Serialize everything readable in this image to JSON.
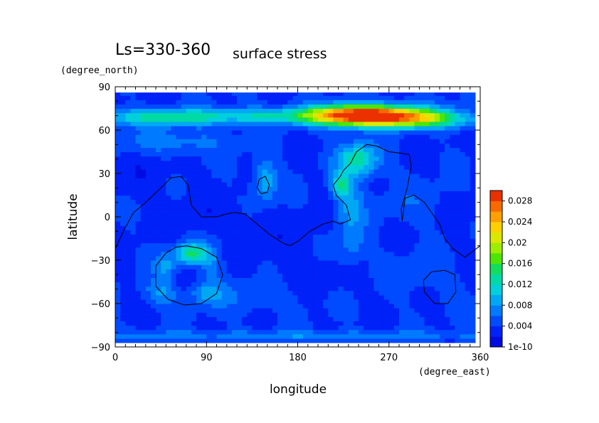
{
  "chart_data": {
    "type": "heatmap",
    "title_main": "Ls=330-360",
    "title_sub": "surface stress",
    "xlabel": "longitude",
    "ylabel": "latitude",
    "x_unit": "(degree_east)",
    "y_unit": "(degree_north)",
    "xlim": [
      0,
      360
    ],
    "ylim": [
      -90,
      90
    ],
    "x_ticks": [
      0,
      90,
      180,
      270,
      360
    ],
    "y_ticks": [
      90,
      60,
      30,
      0,
      -30,
      -60,
      -90
    ],
    "x_tick_labels": [
      "0",
      "90",
      "180",
      "270",
      "360"
    ],
    "y_tick_labels": [
      "90",
      "60",
      "30",
      "0",
      "−30",
      "−60",
      "−90"
    ],
    "data_lat_range": [
      -87,
      86
    ],
    "data_lon_range": [
      0,
      355
    ],
    "colorbar": {
      "labels": [
        "1e-10",
        "0.004",
        "0.008",
        "0.012",
        "0.016",
        "0.02",
        "0.024",
        "0.028"
      ],
      "values": [
        0,
        0.004,
        0.008,
        0.012,
        0.016,
        0.02,
        0.024,
        0.028
      ],
      "vmax": 0.03,
      "levels": 15
    },
    "background_value": 0.0038,
    "features": [
      {
        "lon": 265,
        "lat": 70,
        "sx": 38,
        "sy": 5,
        "amp": 0.023
      },
      {
        "lon": 225,
        "lat": 71,
        "sx": 28,
        "sy": 5,
        "amp": 0.011
      },
      {
        "lon": 150,
        "lat": 70,
        "sx": 65,
        "sy": 4,
        "amp": 0.0075
      },
      {
        "lon": 40,
        "lat": 69,
        "sx": 45,
        "sy": 4,
        "amp": 0.0075
      },
      {
        "lon": 315,
        "lat": 67,
        "sx": 35,
        "sy": 4,
        "amp": 0.0065
      },
      {
        "lon": 55,
        "lat": 52,
        "sx": 40,
        "sy": 6,
        "amp": 0.0035
      },
      {
        "lon": 240,
        "lat": 40,
        "sx": 14,
        "sy": 8,
        "amp": 0.0095
      },
      {
        "lon": 222,
        "lat": 22,
        "sx": 6,
        "sy": 6,
        "amp": 0.0085
      },
      {
        "lon": 232,
        "lat": 8,
        "sx": 10,
        "sy": 14,
        "amp": 0.0045
      },
      {
        "lon": 232,
        "lat": -20,
        "sx": 10,
        "sy": 10,
        "amp": 0.003
      },
      {
        "lon": 148,
        "lat": 25,
        "sx": 8,
        "sy": 10,
        "amp": 0.006
      },
      {
        "lon": 75,
        "lat": -25,
        "sx": 10,
        "sy": 5,
        "amp": 0.0105
      },
      {
        "lon": 50,
        "lat": -33,
        "sx": 8,
        "sy": 7,
        "amp": 0.0045
      },
      {
        "lon": 95,
        "lat": -30,
        "sx": 7,
        "sy": 8,
        "amp": 0.004
      },
      {
        "lon": 45,
        "lat": -52,
        "sx": 12,
        "sy": 6,
        "amp": 0.004
      },
      {
        "lon": 90,
        "lat": -52,
        "sx": 12,
        "sy": 6,
        "amp": 0.004
      },
      {
        "lon": 65,
        "lat": -45,
        "sx": 8,
        "sy": 5,
        "amp": -0.0015
      },
      {
        "lon": 130,
        "lat": -55,
        "sx": 40,
        "sy": 8,
        "amp": 0.0018
      },
      {
        "lon": 300,
        "lat": -40,
        "sx": 25,
        "sy": 10,
        "amp": 0.0015
      },
      {
        "lon": 180,
        "lat": -82,
        "sx": 200,
        "sy": 2.5,
        "amp": 0.0035
      },
      {
        "lon": 90,
        "lat": 0,
        "sx": 40,
        "sy": 8,
        "amp": -0.0012
      },
      {
        "lon": 170,
        "lat": -20,
        "sx": 30,
        "sy": 12,
        "amp": -0.001
      },
      {
        "lon": 30,
        "lat": 30,
        "sx": 25,
        "sy": 10,
        "amp": -0.001
      },
      {
        "lon": 300,
        "lat": 10,
        "sx": 30,
        "sy": 10,
        "amp": 0.0015
      },
      {
        "lon": 340,
        "lat": 5,
        "sx": 15,
        "sy": 10,
        "amp": -0.0012
      },
      {
        "lon": 200,
        "lat": -45,
        "sx": 30,
        "sy": 8,
        "amp": -0.0008
      }
    ],
    "contours": [
      {
        "name": "topography-contour-main",
        "closed": false,
        "points": [
          [
            0,
            -22
          ],
          [
            8,
            -10
          ],
          [
            18,
            3
          ],
          [
            30,
            10
          ],
          [
            45,
            20
          ],
          [
            55,
            27
          ],
          [
            65,
            28
          ],
          [
            72,
            22
          ],
          [
            75,
            8
          ],
          [
            85,
            0
          ],
          [
            100,
            0
          ],
          [
            110,
            2
          ],
          [
            118,
            3
          ],
          [
            128,
            2
          ],
          [
            140,
            -5
          ],
          [
            152,
            -12
          ],
          [
            165,
            -18
          ],
          [
            172,
            -20
          ],
          [
            180,
            -17
          ],
          [
            192,
            -10
          ],
          [
            205,
            -5
          ],
          [
            215,
            -3
          ],
          [
            222,
            -5
          ],
          [
            232,
            -2
          ],
          [
            228,
            8
          ],
          [
            218,
            15
          ],
          [
            215,
            22
          ],
          [
            222,
            28
          ],
          [
            225,
            32
          ],
          [
            232,
            37
          ],
          [
            238,
            45
          ],
          [
            248,
            50
          ],
          [
            258,
            49
          ],
          [
            270,
            45
          ],
          [
            282,
            44
          ],
          [
            290,
            43
          ],
          [
            292,
            35
          ],
          [
            288,
            20
          ],
          [
            284,
            10
          ],
          [
            282,
            5
          ],
          [
            283,
            -3
          ],
          [
            286,
            13
          ],
          [
            295,
            15
          ],
          [
            305,
            10
          ],
          [
            315,
            0
          ],
          [
            320,
            -5
          ],
          [
            325,
            -15
          ],
          [
            333,
            -22
          ],
          [
            345,
            -28
          ],
          [
            360,
            -20
          ]
        ]
      },
      {
        "name": "crater-contour-large",
        "closed": true,
        "points": [
          [
            70,
            -20
          ],
          [
            85,
            -22
          ],
          [
            100,
            -28
          ],
          [
            106,
            -40
          ],
          [
            100,
            -53
          ],
          [
            85,
            -60
          ],
          [
            68,
            -61
          ],
          [
            52,
            -57
          ],
          [
            40,
            -48
          ],
          [
            40,
            -34
          ],
          [
            50,
            -25
          ],
          [
            60,
            -21
          ]
        ]
      },
      {
        "name": "crater-contour-right",
        "closed": true,
        "points": [
          [
            325,
            -37
          ],
          [
            335,
            -40
          ],
          [
            336,
            -52
          ],
          [
            328,
            -60
          ],
          [
            315,
            -60
          ],
          [
            305,
            -52
          ],
          [
            304,
            -44
          ],
          [
            312,
            -38
          ]
        ]
      },
      {
        "name": "crater-contour-small",
        "closed": true,
        "points": [
          [
            148,
            28
          ],
          [
            152,
            22
          ],
          [
            150,
            17
          ],
          [
            144,
            16
          ],
          [
            140,
            20
          ],
          [
            142,
            26
          ]
        ]
      }
    ]
  }
}
